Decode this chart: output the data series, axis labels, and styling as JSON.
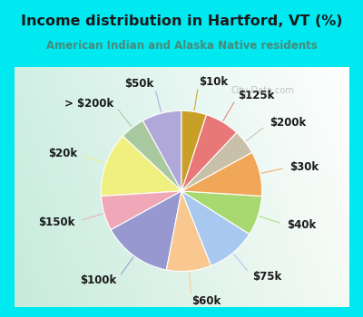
{
  "title": "Income distribution in Hartford, VT (%)",
  "subtitle": "American Indian and Alaska Native residents",
  "title_color": "#1a1a1a",
  "subtitle_color": "#4a8a7a",
  "border_color": "#00e8f0",
  "border_width": 10,
  "bg_gradient_left": "#c8ede0",
  "bg_gradient_right": "#e8faf5",
  "watermark": "City-Data.com",
  "labels": [
    "$50k",
    "> $200k",
    "$20k",
    "$150k",
    "$100k",
    "$60k",
    "$75k",
    "$40k",
    "$30k",
    "$200k",
    "$125k",
    "$10k"
  ],
  "values": [
    8,
    5,
    13,
    7,
    14,
    9,
    10,
    8,
    9,
    5,
    7,
    5
  ],
  "colors": [
    "#b0a8d8",
    "#a8c8a0",
    "#f0f080",
    "#f0a8b8",
    "#9898d0",
    "#f8c890",
    "#a8c8f0",
    "#a8d870",
    "#f0a858",
    "#c8c0a8",
    "#e87878",
    "#c8a028"
  ],
  "label_fontsize": 8.5,
  "startangle": 90,
  "label_color": "#1a1a1a"
}
